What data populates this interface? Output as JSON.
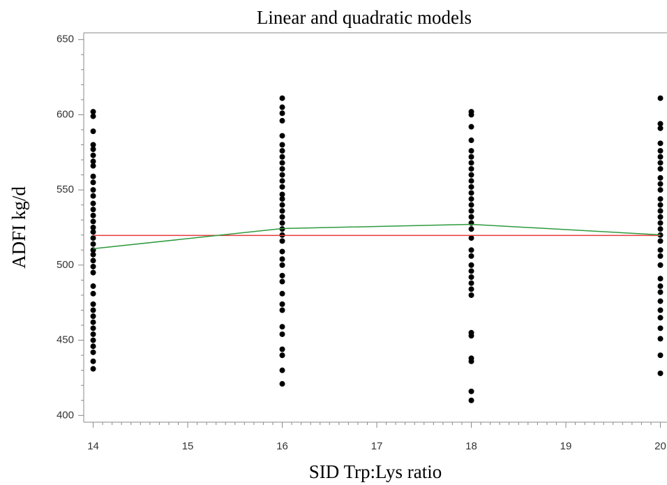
{
  "chart_data": {
    "type": "scatter",
    "title": "Linear and quadratic models",
    "x_label": "SID Trp:Lys ratio",
    "y_label": "ADFI kg/d",
    "xlim": [
      13.9,
      20.07
    ],
    "ylim": [
      395.5,
      654.5
    ],
    "xticks": [
      14,
      15,
      16,
      17,
      18,
      19,
      20
    ],
    "yticks": [
      400,
      450,
      500,
      550,
      600,
      650
    ],
    "point_color": "#000000",
    "groups": [
      {
        "x": 14,
        "values": [
          602,
          599,
          589,
          580,
          577,
          573,
          569,
          566,
          559,
          555,
          550,
          546,
          541,
          537,
          533,
          529,
          525,
          522,
          518,
          514,
          510,
          507,
          503,
          499,
          495,
          486,
          481,
          474,
          470,
          466,
          462,
          458,
          454,
          450,
          446,
          442,
          436,
          431
        ]
      },
      {
        "x": 16,
        "values": [
          611,
          605,
          601,
          596,
          586,
          580,
          576,
          572,
          568,
          564,
          560,
          556,
          552,
          547,
          544,
          540,
          536,
          532,
          528,
          524,
          520,
          516,
          509,
          504,
          500,
          493,
          489,
          481,
          474,
          470,
          459,
          454,
          444,
          440,
          430,
          421
        ]
      },
      {
        "x": 18,
        "values": [
          602,
          600,
          592,
          583,
          576,
          572,
          568,
          564,
          560,
          556,
          552,
          548,
          544,
          540,
          536,
          532,
          528,
          524,
          518,
          510,
          506,
          500,
          496,
          492,
          488,
          484,
          480,
          455,
          453,
          438,
          436,
          416,
          410
        ]
      },
      {
        "x": 20,
        "values": [
          611,
          594,
          591,
          581,
          576,
          572,
          568,
          564,
          558,
          554,
          550,
          544,
          540,
          536,
          532,
          528,
          524,
          520,
          516,
          510,
          506,
          500,
          491,
          486,
          482,
          476,
          470,
          465,
          458,
          451,
          440,
          428
        ]
      }
    ],
    "lines": [
      {
        "color": "#e8383d",
        "x": [
          14,
          20
        ],
        "values": [
          519.7,
          519.7
        ]
      },
      {
        "color": "#2e9a3e",
        "x": [
          14,
          16,
          18,
          20
        ],
        "values": [
          510.9,
          524.3,
          527.1,
          520.1
        ]
      }
    ]
  }
}
